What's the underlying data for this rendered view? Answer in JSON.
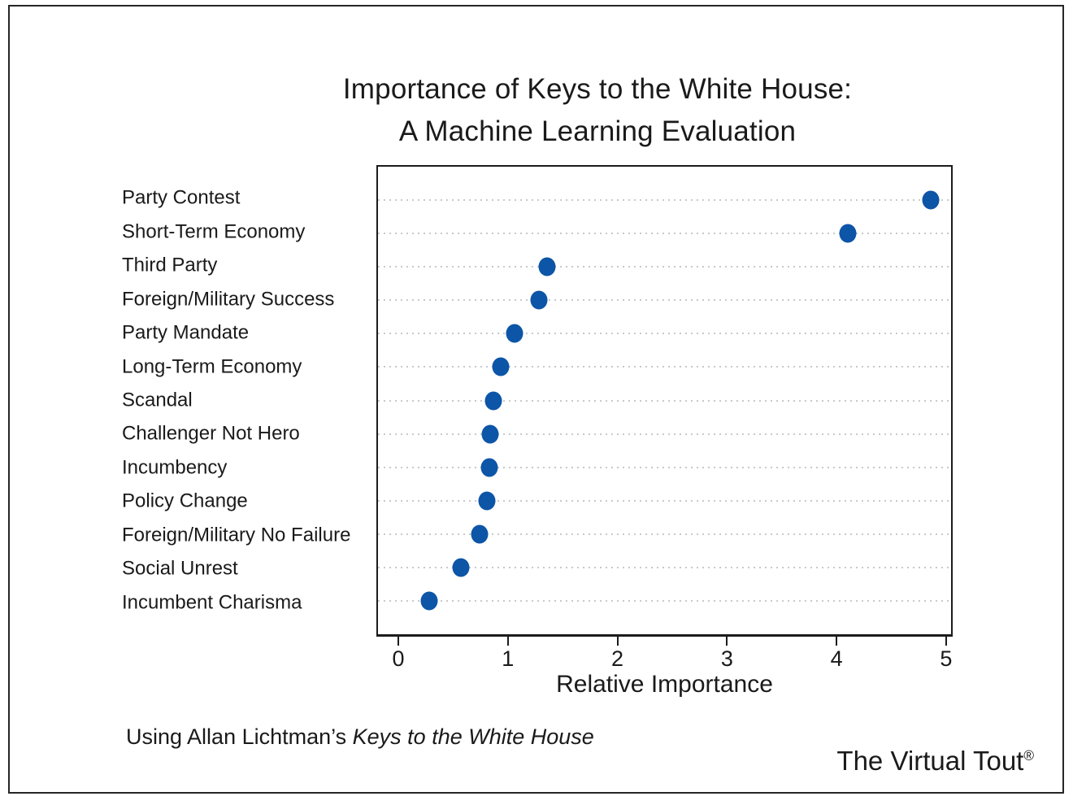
{
  "title": {
    "line1": "Importance of Keys to the White House:",
    "line2": "A Machine Learning Evaluation"
  },
  "chart_data": {
    "type": "scatter",
    "subtype": "horizontal-dot-plot",
    "categories": [
      "Party Contest",
      "Short-Term Economy",
      "Third Party",
      "Foreign/Military Success",
      "Party Mandate",
      "Long-Term Economy",
      "Scandal",
      "Challenger Not Hero",
      "Incumbency",
      "Policy Change",
      "Foreign/Military No Failure",
      "Social Unrest",
      "Incumbent Charisma"
    ],
    "values": [
      4.87,
      4.11,
      1.35,
      1.28,
      1.05,
      0.93,
      0.86,
      0.83,
      0.82,
      0.8,
      0.73,
      0.56,
      0.27
    ],
    "xlabel": "Relative Importance",
    "x_ticks": [
      "0",
      "1",
      "2",
      "3",
      "4",
      "5"
    ],
    "x_tick_values": [
      0,
      1,
      2,
      3,
      4,
      5
    ],
    "xlim": [
      -0.2,
      5.06
    ],
    "grid": "horizontal-dotted",
    "legend": "none",
    "colors": {
      "dot": "#0d55a7",
      "gridline": "#c9c9c9",
      "border": "#1c1c1c",
      "text": "#1a1a1a"
    }
  },
  "footer": {
    "credit_prefix": "Using Allan Lichtman’s ",
    "credit_italic": "Keys to the White House",
    "brand": "The Virtual Tout",
    "brand_mark": "®"
  }
}
